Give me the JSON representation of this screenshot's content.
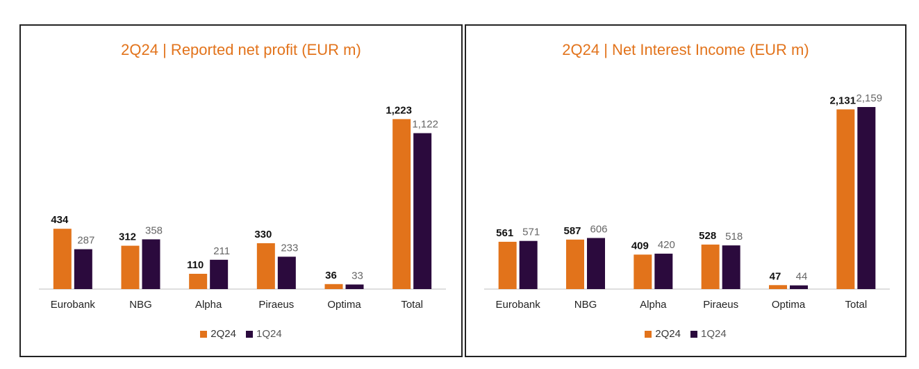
{
  "colors": {
    "series_a": "#e2731b",
    "series_b": "#2b0a3d",
    "title": "#e2731b"
  },
  "chart_data": [
    {
      "type": "bar",
      "title": "2Q24 | Reported net profit (EUR m)",
      "categories": [
        "Eurobank",
        "NBG",
        "Alpha",
        "Piraeus",
        "Optima",
        "Total"
      ],
      "series": [
        {
          "name": "2Q24",
          "values": [
            434,
            312,
            110,
            330,
            36,
            1223
          ],
          "labels": [
            "434",
            "312",
            "110",
            "330",
            "36",
            "1,223"
          ]
        },
        {
          "name": "1Q24",
          "values": [
            287,
            358,
            211,
            233,
            33,
            1122
          ],
          "labels": [
            "287",
            "358",
            "211",
            "233",
            "33",
            "1,122"
          ]
        }
      ],
      "ylim": [
        0,
        1250
      ],
      "legend": "bottom"
    },
    {
      "type": "bar",
      "title": "2Q24 | Net Interest Income (EUR m)",
      "categories": [
        "Eurobank",
        "NBG",
        "Alpha",
        "Piraeus",
        "Optima",
        "Total"
      ],
      "series": [
        {
          "name": "2Q24",
          "values": [
            561,
            587,
            409,
            528,
            47,
            2131
          ],
          "labels": [
            "561",
            "587",
            "409",
            "528",
            "47",
            "2,131"
          ]
        },
        {
          "name": "1Q24",
          "values": [
            571,
            606,
            420,
            518,
            44,
            2159
          ],
          "labels": [
            "571",
            "606",
            "420",
            "518",
            "44",
            "2,159"
          ]
        }
      ],
      "ylim": [
        0,
        2159
      ],
      "legend": "bottom"
    }
  ]
}
